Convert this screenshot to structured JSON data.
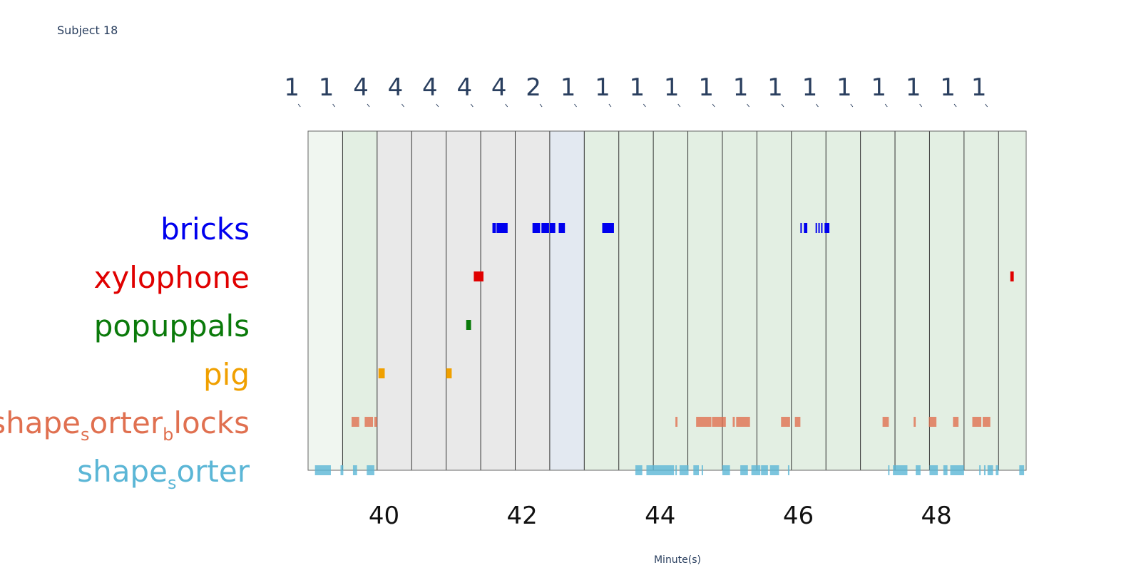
{
  "page": {
    "subject_title": "Subject 18"
  },
  "chart_data": {
    "type": "timeline",
    "title": "Subject 18",
    "xlabel": "Minute(s)",
    "xlim": [
      38.9,
      49.3
    ],
    "x_ticks": [
      40,
      42,
      44,
      46,
      48
    ],
    "segments": [
      {
        "start": 38.9,
        "end": 39.4,
        "count": "1",
        "fill": "#f0f6f0"
      },
      {
        "start": 39.4,
        "end": 39.9,
        "count": "1",
        "fill": "#e3efe3"
      },
      {
        "start": 39.9,
        "end": 40.4,
        "count": "4",
        "fill": "#e9e9e9"
      },
      {
        "start": 40.4,
        "end": 40.9,
        "count": "4",
        "fill": "#e9e9e9"
      },
      {
        "start": 40.9,
        "end": 41.4,
        "count": "4",
        "fill": "#e9e9e9"
      },
      {
        "start": 41.4,
        "end": 41.9,
        "count": "4",
        "fill": "#e9e9e9"
      },
      {
        "start": 41.9,
        "end": 42.4,
        "count": "4",
        "fill": "#e9e9e9"
      },
      {
        "start": 42.4,
        "end": 42.9,
        "count": "2",
        "fill": "#e3e9f1"
      },
      {
        "start": 42.9,
        "end": 43.4,
        "count": "1",
        "fill": "#e3efe3"
      },
      {
        "start": 43.4,
        "end": 43.9,
        "count": "1",
        "fill": "#e3efe3"
      },
      {
        "start": 43.9,
        "end": 44.4,
        "count": "1",
        "fill": "#e3efe3"
      },
      {
        "start": 44.4,
        "end": 44.9,
        "count": "1",
        "fill": "#e3efe3"
      },
      {
        "start": 44.9,
        "end": 45.4,
        "count": "1",
        "fill": "#e3efe3"
      },
      {
        "start": 45.4,
        "end": 45.9,
        "count": "1",
        "fill": "#e3efe3"
      },
      {
        "start": 45.9,
        "end": 46.4,
        "count": "1",
        "fill": "#e3efe3"
      },
      {
        "start": 46.4,
        "end": 46.9,
        "count": "1",
        "fill": "#e3efe3"
      },
      {
        "start": 46.9,
        "end": 47.4,
        "count": "1",
        "fill": "#e3efe3"
      },
      {
        "start": 47.4,
        "end": 47.9,
        "count": "1",
        "fill": "#e3efe3"
      },
      {
        "start": 47.9,
        "end": 48.4,
        "count": "1",
        "fill": "#e3efe3"
      },
      {
        "start": 48.4,
        "end": 48.9,
        "count": "1",
        "fill": "#e3efe3"
      },
      {
        "start": 48.9,
        "end": 49.3,
        "count": "1",
        "fill": "#e3efe3"
      }
    ],
    "series": [
      {
        "name": "bricks",
        "label_main": "bricks",
        "label_sub": "",
        "label_tail": "",
        "color": "#0000ee",
        "opacity": 1,
        "events": [
          [
            41.57,
            41.62
          ],
          [
            41.63,
            41.79
          ],
          [
            42.15,
            42.26
          ],
          [
            42.28,
            42.39
          ],
          [
            42.4,
            42.48
          ],
          [
            42.53,
            42.62
          ],
          [
            43.16,
            43.33
          ],
          [
            46.03,
            46.04
          ],
          [
            46.08,
            46.13
          ],
          [
            46.25,
            46.26
          ],
          [
            46.29,
            46.3
          ],
          [
            46.33,
            46.35
          ],
          [
            46.38,
            46.45
          ]
        ]
      },
      {
        "name": "xylophone",
        "label_main": "xylophone",
        "label_sub": "",
        "label_tail": "",
        "color": "#e00000",
        "opacity": 1,
        "events": [
          [
            41.3,
            41.44
          ],
          [
            49.07,
            49.12
          ]
        ]
      },
      {
        "name": "popuppals",
        "label_main": "popuppals",
        "label_sub": "",
        "label_tail": "",
        "color": "#0a7a0a",
        "opacity": 1,
        "events": [
          [
            41.19,
            41.26
          ]
        ]
      },
      {
        "name": "pig",
        "label_main": "pig",
        "label_sub": "",
        "label_tail": "",
        "color": "#f0a000",
        "opacity": 1,
        "events": [
          [
            39.92,
            40.01
          ],
          [
            40.9,
            40.98
          ]
        ]
      },
      {
        "name": "shape_sorter_blocks",
        "label_main": "shape",
        "label_sub": "s",
        "label_tail": "orter",
        "label_sub2": "b",
        "label_tail2": "locks",
        "color": "#e07050",
        "opacity": 0.8,
        "events": [
          [
            39.53,
            39.64
          ],
          [
            39.72,
            39.84
          ],
          [
            39.86,
            39.9
          ],
          [
            44.22,
            44.25
          ],
          [
            44.52,
            44.74
          ],
          [
            44.75,
            44.95
          ],
          [
            45.05,
            45.08
          ],
          [
            45.1,
            45.3
          ],
          [
            45.75,
            45.88
          ],
          [
            45.95,
            46.03
          ],
          [
            47.22,
            47.31
          ],
          [
            47.67,
            47.7
          ],
          [
            47.89,
            48.0
          ],
          [
            48.24,
            48.32
          ],
          [
            48.52,
            48.65
          ],
          [
            48.67,
            48.78
          ]
        ]
      },
      {
        "name": "shape_sorter",
        "label_main": "shape",
        "label_sub": "s",
        "label_tail": "orter",
        "color": "#5bb6d6",
        "opacity": 0.8,
        "events": [
          [
            39.0,
            39.23
          ],
          [
            39.37,
            39.41
          ],
          [
            39.55,
            39.61
          ],
          [
            39.75,
            39.86
          ],
          [
            43.64,
            43.74
          ],
          [
            43.8,
            44.2
          ],
          [
            44.22,
            44.24
          ],
          [
            44.28,
            44.41
          ],
          [
            44.48,
            44.56
          ],
          [
            44.6,
            44.62
          ],
          [
            44.9,
            45.01
          ],
          [
            45.16,
            45.27
          ],
          [
            45.32,
            45.45
          ],
          [
            45.46,
            45.56
          ],
          [
            45.59,
            45.72
          ],
          [
            45.85,
            45.87
          ],
          [
            47.3,
            47.32
          ],
          [
            47.37,
            47.58
          ],
          [
            47.7,
            47.77
          ],
          [
            47.9,
            48.02
          ],
          [
            48.1,
            48.16
          ],
          [
            48.2,
            48.4
          ],
          [
            48.62,
            48.64
          ],
          [
            48.69,
            48.71
          ],
          [
            48.74,
            48.82
          ],
          [
            48.86,
            48.9
          ],
          [
            49.2,
            49.27
          ]
        ]
      }
    ],
    "grid": false,
    "legend": "none"
  }
}
